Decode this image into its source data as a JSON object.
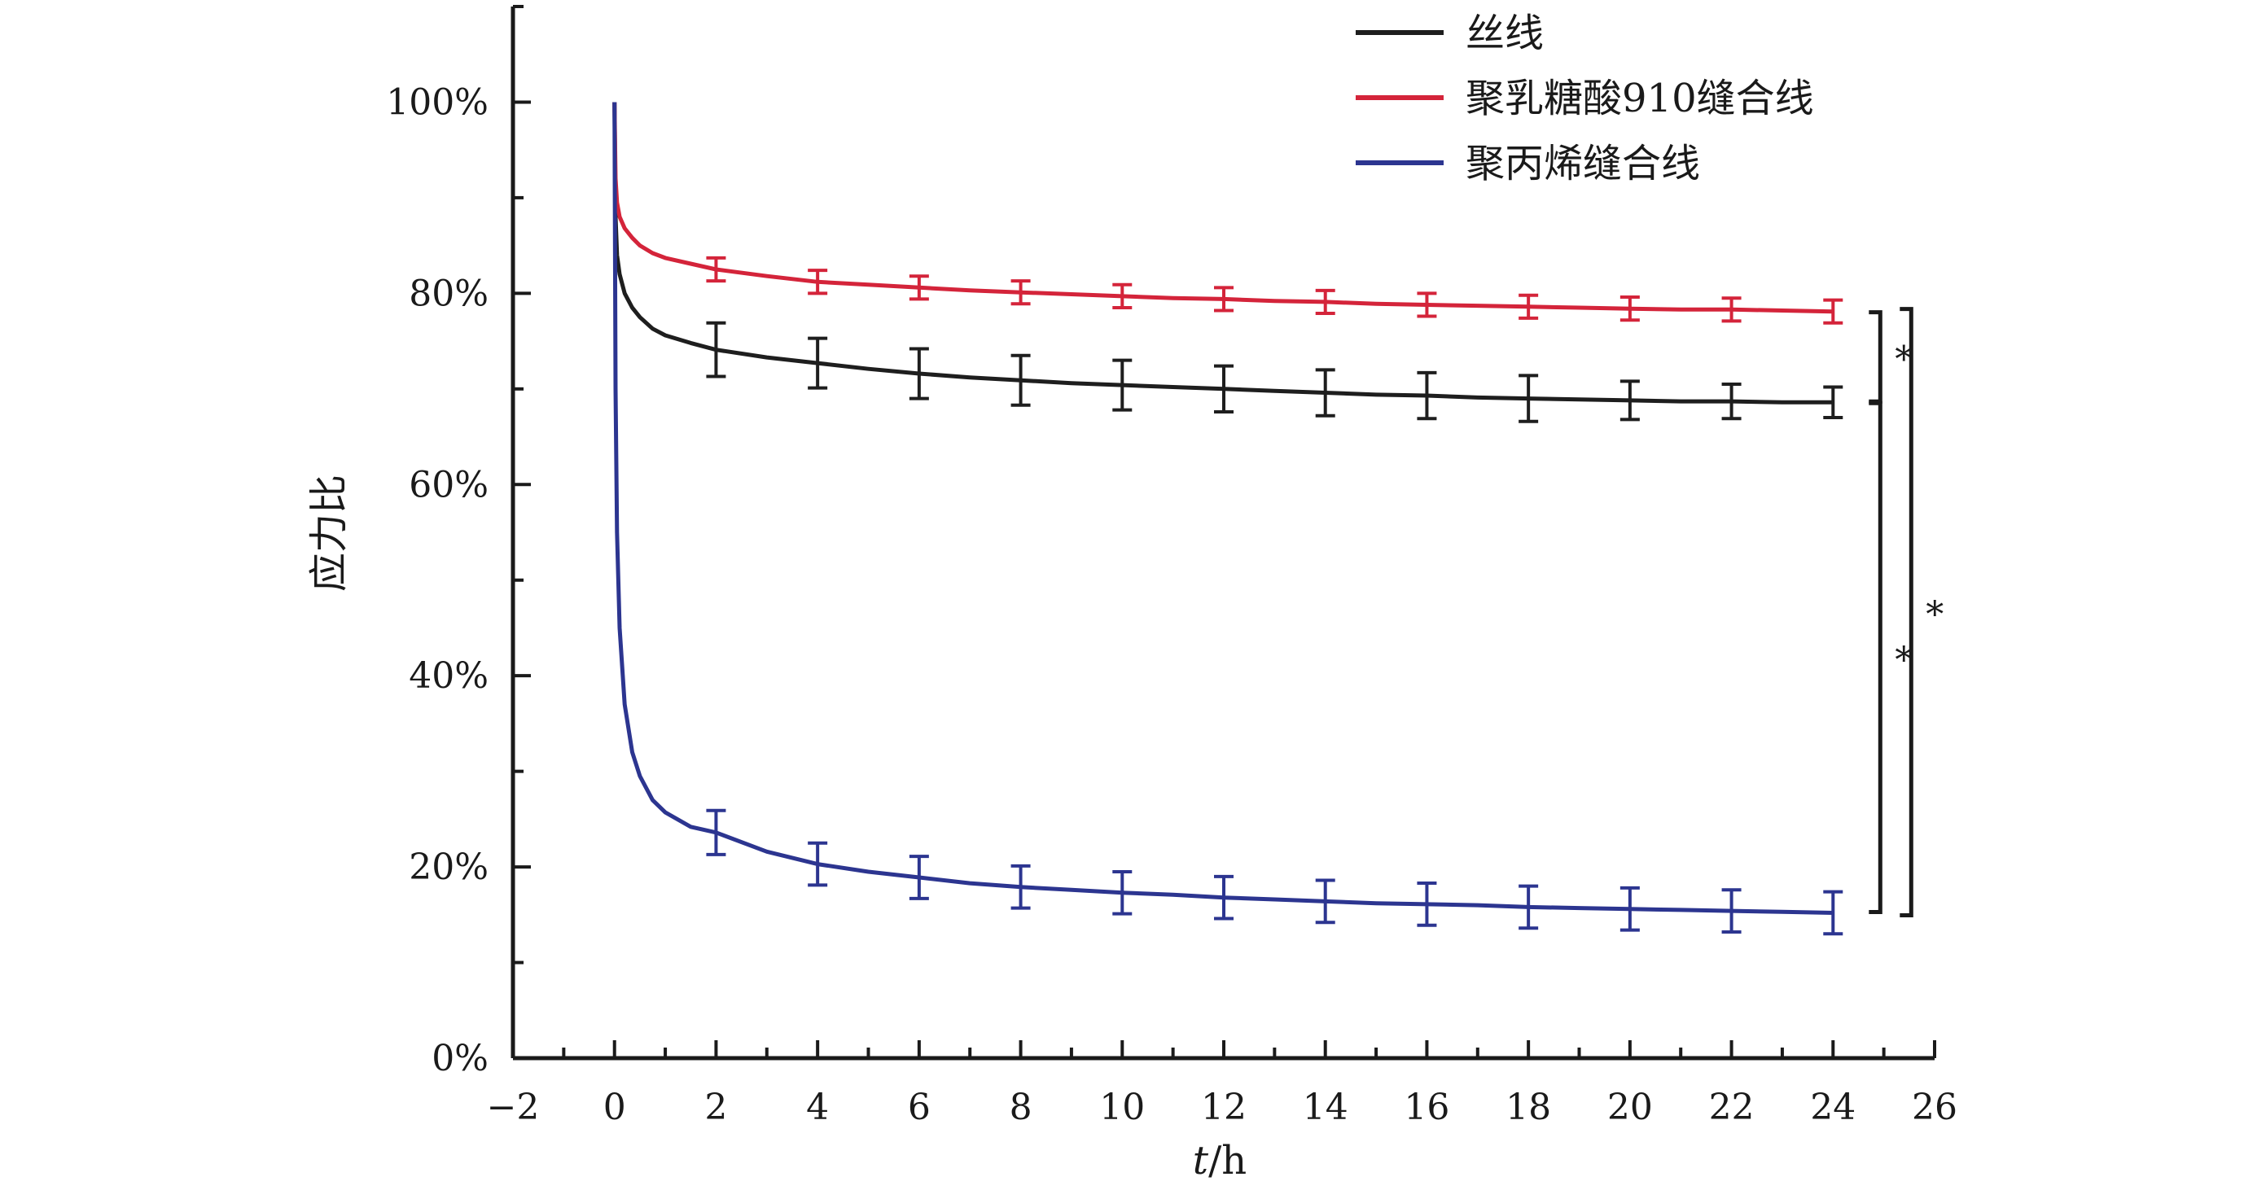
{
  "chart_data": {
    "type": "line",
    "title": "",
    "xlabel_italic": "t",
    "xlabel_unit": "/h",
    "ylabel": "应力比",
    "xlim": [
      -2,
      26
    ],
    "ylim": [
      0,
      110
    ],
    "x_ticks": [
      -2,
      0,
      2,
      4,
      6,
      8,
      10,
      12,
      14,
      16,
      18,
      20,
      22,
      24,
      26
    ],
    "x_tick_labels": [
      "−2",
      "0",
      "2",
      "4",
      "6",
      "8",
      "10",
      "12",
      "14",
      "16",
      "18",
      "20",
      "22",
      "24",
      "26"
    ],
    "y_ticks": [
      0,
      20,
      40,
      60,
      80,
      100
    ],
    "y_tick_labels": [
      "0%",
      "20%",
      "40%",
      "60%",
      "80%",
      "100%"
    ],
    "y_minor_ticks": [
      10,
      30,
      50,
      70,
      90,
      110
    ],
    "legend_position": "top-right",
    "grid": false,
    "series": [
      {
        "name": "丝线",
        "color": "#1e1e1e",
        "curve_x": [
          0,
          0.02,
          0.05,
          0.1,
          0.2,
          0.35,
          0.5,
          0.75,
          1,
          1.5,
          2,
          3,
          4,
          5,
          6,
          7,
          8,
          9,
          10,
          11,
          12,
          13,
          14,
          15,
          16,
          17,
          18,
          19,
          20,
          21,
          22,
          23,
          24
        ],
        "curve_y": [
          100,
          88,
          84,
          82,
          80,
          78.5,
          77.5,
          76.3,
          75.6,
          74.8,
          74.1,
          73.3,
          72.7,
          72.1,
          71.6,
          71.2,
          70.9,
          70.6,
          70.4,
          70.2,
          70.0,
          69.8,
          69.6,
          69.4,
          69.3,
          69.1,
          69.0,
          68.9,
          68.8,
          68.7,
          68.7,
          68.6,
          68.6
        ],
        "err_x": [
          2,
          4,
          6,
          8,
          10,
          12,
          14,
          16,
          18,
          20,
          22,
          24
        ],
        "err_y": [
          74.1,
          72.7,
          71.6,
          70.9,
          70.4,
          70.0,
          69.6,
          69.3,
          69.0,
          68.8,
          68.7,
          68.6
        ],
        "err": [
          2.8,
          2.6,
          2.6,
          2.6,
          2.6,
          2.4,
          2.4,
          2.4,
          2.4,
          2.0,
          1.8,
          1.6
        ]
      },
      {
        "name": "聚乳糖酸910缝合线",
        "color": "#d4243a",
        "curve_x": [
          0,
          0.02,
          0.05,
          0.1,
          0.2,
          0.35,
          0.5,
          0.75,
          1,
          1.5,
          2,
          3,
          4,
          5,
          6,
          7,
          8,
          9,
          10,
          11,
          12,
          13,
          14,
          15,
          16,
          17,
          18,
          19,
          20,
          21,
          22,
          23,
          24
        ],
        "curve_y": [
          100,
          92,
          89.5,
          88,
          86.8,
          85.8,
          85,
          84.2,
          83.7,
          83.1,
          82.5,
          81.8,
          81.2,
          80.9,
          80.6,
          80.3,
          80.1,
          79.9,
          79.7,
          79.5,
          79.4,
          79.2,
          79.1,
          78.9,
          78.8,
          78.7,
          78.6,
          78.5,
          78.4,
          78.3,
          78.3,
          78.2,
          78.1
        ],
        "err_x": [
          2,
          4,
          6,
          8,
          10,
          12,
          14,
          16,
          18,
          20,
          22,
          24
        ],
        "err_y": [
          82.5,
          81.2,
          80.6,
          80.1,
          79.7,
          79.4,
          79.1,
          78.8,
          78.6,
          78.4,
          78.3,
          78.1
        ],
        "err": [
          1.2,
          1.2,
          1.2,
          1.2,
          1.2,
          1.2,
          1.2,
          1.2,
          1.2,
          1.2,
          1.2,
          1.2
        ]
      },
      {
        "name": "聚丙烯缝合线",
        "color": "#2c3590",
        "curve_x": [
          0,
          0.02,
          0.05,
          0.1,
          0.2,
          0.35,
          0.5,
          0.75,
          1,
          1.5,
          2,
          3,
          4,
          5,
          6,
          7,
          8,
          9,
          10,
          11,
          12,
          13,
          14,
          15,
          16,
          17,
          18,
          19,
          20,
          21,
          22,
          23,
          24
        ],
        "curve_y": [
          100,
          70,
          55,
          45,
          37,
          32,
          29.5,
          27,
          25.7,
          24.2,
          23.6,
          21.6,
          20.3,
          19.5,
          18.9,
          18.3,
          17.9,
          17.6,
          17.3,
          17.1,
          16.8,
          16.6,
          16.4,
          16.2,
          16.1,
          16.0,
          15.8,
          15.7,
          15.6,
          15.5,
          15.4,
          15.3,
          15.2
        ],
        "err_x": [
          2,
          4,
          6,
          8,
          10,
          12,
          14,
          16,
          18,
          20,
          22,
          24
        ],
        "err_y": [
          23.6,
          20.3,
          18.9,
          17.9,
          17.3,
          16.8,
          16.4,
          16.1,
          15.8,
          15.6,
          15.4,
          15.2
        ],
        "err": [
          2.3,
          2.2,
          2.2,
          2.2,
          2.2,
          2.2,
          2.2,
          2.2,
          2.2,
          2.2,
          2.2,
          2.2
        ]
      }
    ],
    "significance": [
      {
        "label": "*",
        "from_y": 78.1,
        "to_y": 68.6,
        "level": 1
      },
      {
        "label": "*",
        "from_y": 68.6,
        "to_y": 15.2,
        "level": 1
      },
      {
        "label": "*",
        "from_y": 78.1,
        "to_y": 15.2,
        "level": 2
      }
    ]
  }
}
